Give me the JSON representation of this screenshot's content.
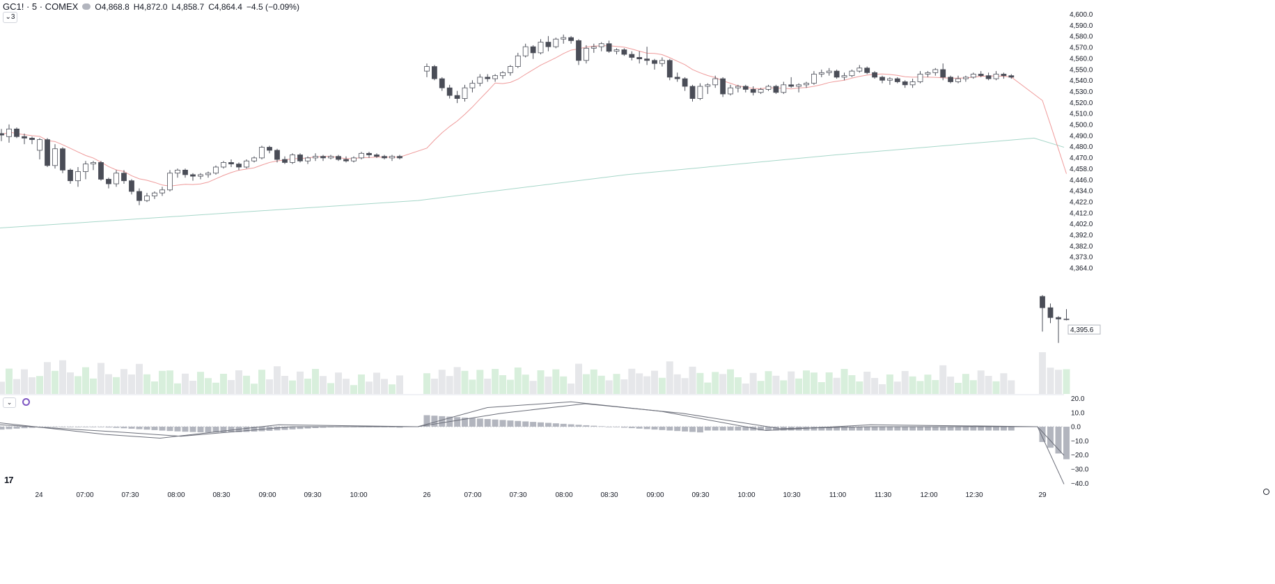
{
  "header": {
    "symbol": "GC1! · 5 · COMEX",
    "open_label": "O",
    "open": "4,868.8",
    "high_label": "H",
    "high": "4,872.0",
    "low_label": "L",
    "low": "4,858.7",
    "close_label": "C",
    "close": "4,864.4",
    "change": "−4.5 (−0.09%)",
    "indicator_count": "3"
  },
  "branding": {
    "logo_text": "17"
  },
  "colors": {
    "candle_up_fill": "#ffffff",
    "candle_down_fill": "#4a4d57",
    "candle_border": "#4a4d57",
    "ma_fast": "#ef9a9a",
    "ma_fast_alt": "#90b4f0",
    "ma_slow": "#a5d6c8",
    "volume_up": "#d8efdc",
    "volume_down": "#e6e7ea",
    "macd_line": "#6a6d78",
    "macd_hist": "#b2b5be"
  },
  "chart_data": {
    "type": "candlestick",
    "symbol": "GC1!",
    "interval": "5",
    "exchange": "COMEX",
    "x_ticks": [
      "24",
      "07:00",
      "07:30",
      "08:00",
      "08:30",
      "09:00",
      "09:30",
      "10:00",
      "26",
      "07:00",
      "07:30",
      "08:00",
      "08:30",
      "09:00",
      "09:30",
      "10:00",
      "10:30",
      "11:00",
      "11:30",
      "12:00",
      "12:30",
      "29"
    ],
    "price_axis_ticks": [
      "4,600.0",
      "4,590.0",
      "4,580.0",
      "4,570.0",
      "4,560.0",
      "4,550.0",
      "4,540.0",
      "4,530.0",
      "4,520.0",
      "4,510.0",
      "4,500.0",
      "4,490.0",
      "4,480.0",
      "4,470.0",
      "4,458.0",
      "4,446.0",
      "4,434.0",
      "4,422.0",
      "4,412.0",
      "4,402.0",
      "4,392.0",
      "4,382.0",
      "4,373.0",
      "4,364.0"
    ],
    "last_price_label": "4,395.6",
    "macd_axis_ticks": [
      "20.0",
      "10.0",
      "0.0",
      "−10.0",
      "−20.0",
      "−30.0",
      "−40.0"
    ],
    "macd_ylim": [
      -40,
      20
    ],
    "grid": false,
    "segments": [
      {
        "name_tick": "24",
        "candles": [
          [
            4521,
            4524,
            4516,
            4520
          ],
          [
            4519,
            4527,
            4515,
            4524
          ],
          [
            4524,
            4525,
            4518,
            4519
          ],
          [
            4519,
            4521,
            4514,
            4518
          ],
          [
            4518,
            4519,
            4514,
            4517
          ],
          [
            4510,
            4518,
            4504,
            4517
          ],
          [
            4517,
            4518,
            4499,
            4500
          ],
          [
            4500,
            4514,
            4498,
            4511
          ],
          [
            4511,
            4512,
            4495,
            4497
          ],
          [
            4497,
            4498,
            4488,
            4490
          ],
          [
            4490,
            4499,
            4486,
            4496
          ],
          [
            4496,
            4503,
            4491,
            4501
          ],
          [
            4501,
            4503,
            4497,
            4502
          ],
          [
            4502,
            4503,
            4490,
            4491
          ],
          [
            4491,
            4492,
            4485,
            4488
          ],
          [
            4488,
            4497,
            4486,
            4495
          ],
          [
            4495,
            4497,
            4488,
            4490
          ],
          [
            4490,
            4491,
            4481,
            4483
          ],
          [
            4483,
            4485,
            4474,
            4477
          ],
          [
            4477,
            4482,
            4476,
            4480
          ],
          [
            4480,
            4483,
            4478,
            4482
          ],
          [
            4482,
            4486,
            4480,
            4484
          ],
          [
            4484,
            4497,
            4483,
            4495
          ],
          [
            4495,
            4498,
            4492,
            4497
          ],
          [
            4497,
            4498,
            4492,
            4494
          ],
          [
            4494,
            4495,
            4490,
            4493
          ],
          [
            4493,
            4495,
            4491,
            4494
          ],
          [
            4494,
            4496,
            4492,
            4495
          ],
          [
            4495,
            4500,
            4494,
            4499
          ],
          [
            4499,
            4503,
            4498,
            4502
          ],
          [
            4502,
            4504,
            4499,
            4501
          ],
          [
            4501,
            4502,
            4497,
            4499
          ],
          [
            4499,
            4504,
            4498,
            4503
          ],
          [
            4503,
            4506,
            4502,
            4505
          ],
          [
            4505,
            4513,
            4504,
            4512
          ],
          [
            4512,
            4513,
            4508,
            4510
          ],
          [
            4510,
            4511,
            4502,
            4504
          ],
          [
            4504,
            4506,
            4501,
            4502
          ],
          [
            4502,
            4508,
            4501,
            4507
          ],
          [
            4507,
            4508,
            4502,
            4503
          ],
          [
            4503,
            4506,
            4501,
            4505
          ],
          [
            4505,
            4508,
            4503,
            4506
          ],
          [
            4506,
            4507,
            4503,
            4505
          ],
          [
            4505,
            4507,
            4504,
            4506
          ],
          [
            4506,
            4507,
            4503,
            4504
          ],
          [
            4504,
            4506,
            4502,
            4503
          ],
          [
            4503,
            4506,
            4502,
            4505
          ],
          [
            4505,
            4509,
            4504,
            4508
          ],
          [
            4508,
            4509,
            4505,
            4507
          ],
          [
            4507,
            4508,
            4505,
            4506
          ],
          [
            4506,
            4507,
            4504,
            4505
          ],
          [
            4505,
            4507,
            4503,
            4506
          ],
          [
            4506,
            4507,
            4504,
            4505
          ]
        ]
      },
      {
        "name_tick": "26",
        "candles": [
          [
            4562,
            4567,
            4558,
            4565
          ],
          [
            4565,
            4566,
            4556,
            4557
          ],
          [
            4557,
            4558,
            4549,
            4551
          ],
          [
            4551,
            4553,
            4544,
            4546
          ],
          [
            4546,
            4549,
            4541,
            4544
          ],
          [
            4544,
            4553,
            4542,
            4551
          ],
          [
            4551,
            4556,
            4548,
            4554
          ],
          [
            4554,
            4560,
            4552,
            4558
          ],
          [
            4558,
            4560,
            4555,
            4557
          ],
          [
            4557,
            4560,
            4555,
            4559
          ],
          [
            4559,
            4562,
            4557,
            4561
          ],
          [
            4561,
            4566,
            4559,
            4565
          ],
          [
            4565,
            4574,
            4564,
            4572
          ],
          [
            4572,
            4580,
            4571,
            4578
          ],
          [
            4578,
            4579,
            4570,
            4574
          ],
          [
            4574,
            4583,
            4573,
            4581
          ],
          [
            4581,
            4585,
            4575,
            4578
          ],
          [
            4578,
            4584,
            4577,
            4583
          ],
          [
            4583,
            4586,
            4580,
            4584
          ],
          [
            4584,
            4585,
            4580,
            4582
          ],
          [
            4582,
            4583,
            4566,
            4569
          ],
          [
            4569,
            4579,
            4567,
            4577
          ],
          [
            4577,
            4580,
            4574,
            4578
          ],
          [
            4578,
            4581,
            4575,
            4580
          ],
          [
            4580,
            4582,
            4574,
            4575
          ],
          [
            4575,
            4577,
            4573,
            4576
          ],
          [
            4576,
            4577,
            4572,
            4573
          ],
          [
            4573,
            4575,
            4569,
            4571
          ],
          [
            4571,
            4575,
            4567,
            4570
          ],
          [
            4570,
            4578,
            4566,
            4569
          ],
          [
            4569,
            4570,
            4563,
            4567
          ],
          [
            4567,
            4571,
            4565,
            4569
          ],
          [
            4569,
            4570,
            4556,
            4558
          ],
          [
            4558,
            4561,
            4555,
            4557
          ],
          [
            4557,
            4558,
            4549,
            4552
          ],
          [
            4552,
            4553,
            4542,
            4544
          ],
          [
            4544,
            4554,
            4543,
            4552
          ],
          [
            4552,
            4554,
            4547,
            4553
          ],
          [
            4553,
            4559,
            4551,
            4557
          ],
          [
            4557,
            4558,
            4545,
            4547
          ],
          [
            4547,
            4553,
            4546,
            4551
          ],
          [
            4551,
            4553,
            4548,
            4552
          ],
          [
            4552,
            4553,
            4548,
            4550
          ],
          [
            4550,
            4552,
            4546,
            4548
          ],
          [
            4548,
            4551,
            4547,
            4550
          ],
          [
            4550,
            4553,
            4549,
            4552
          ],
          [
            4552,
            4553,
            4547,
            4548
          ],
          [
            4548,
            4555,
            4547,
            4553
          ],
          [
            4553,
            4558,
            4551,
            4552
          ],
          [
            4552,
            4554,
            4548,
            4553
          ],
          [
            4553,
            4555,
            4551,
            4554
          ],
          [
            4554,
            4562,
            4553,
            4560
          ],
          [
            4560,
            4563,
            4558,
            4561
          ],
          [
            4561,
            4564,
            4559,
            4562
          ],
          [
            4562,
            4563,
            4557,
            4558
          ],
          [
            4558,
            4561,
            4556,
            4559
          ],
          [
            4559,
            4563,
            4558,
            4562
          ],
          [
            4562,
            4566,
            4561,
            4564
          ],
          [
            4564,
            4565,
            4560,
            4561
          ],
          [
            4561,
            4562,
            4557,
            4558
          ],
          [
            4558,
            4559,
            4554,
            4556
          ],
          [
            4556,
            4558,
            4553,
            4557
          ],
          [
            4557,
            4558,
            4554,
            4555
          ],
          [
            4555,
            4556,
            4551,
            4553
          ],
          [
            4553,
            4557,
            4551,
            4555
          ],
          [
            4555,
            4562,
            4554,
            4560
          ],
          [
            4560,
            4562,
            4558,
            4561
          ],
          [
            4561,
            4564,
            4559,
            4563
          ],
          [
            4563,
            4567,
            4556,
            4558
          ],
          [
            4558,
            4559,
            4554,
            4555
          ],
          [
            4555,
            4559,
            4554,
            4557
          ],
          [
            4557,
            4559,
            4555,
            4558
          ],
          [
            4558,
            4561,
            4557,
            4560
          ],
          [
            4560,
            4562,
            4558,
            4559
          ],
          [
            4559,
            4561,
            4556,
            4557
          ],
          [
            4557,
            4562,
            4556,
            4560
          ],
          [
            4560,
            4561,
            4557,
            4559
          ],
          [
            4559,
            4560,
            4557,
            4558
          ]
        ]
      },
      {
        "name_tick": "29",
        "candles": [
          [
            4412,
            4413,
            4387,
            4404
          ],
          [
            4404,
            4407,
            4393,
            4397
          ],
          [
            4397,
            4398,
            4379,
            4396
          ],
          [
            4396,
            4403,
            4395,
            4396
          ]
        ]
      }
    ]
  }
}
